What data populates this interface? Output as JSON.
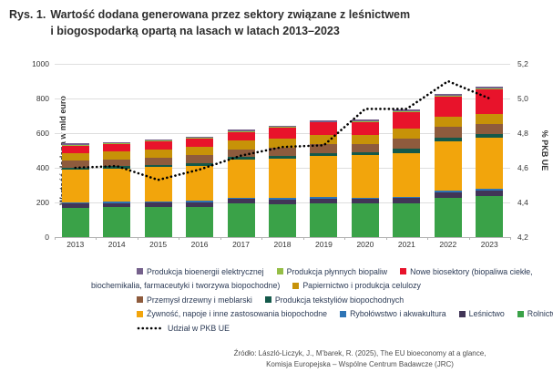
{
  "title": {
    "prefix": "Rys. 1.",
    "line1": "Wartość dodana generowana przez sektory związane z leśnictwem",
    "line2": "i biogospodarką opartą na lasach w latach 2013–2023"
  },
  "chart_data": {
    "type": "bar",
    "subtype": "stacked-bars-with-dotted-line",
    "categories": [
      2013,
      2014,
      2015,
      2016,
      2017,
      2018,
      2019,
      2020,
      2021,
      2022,
      2023
    ],
    "ylabel_left": "Wartość dodana w mld euro",
    "ylabel_right": "% PKB UE",
    "ylim_left": [
      0,
      1000
    ],
    "ylim_right": [
      4.2,
      5.2
    ],
    "y_left_ticks": [
      "0",
      "200",
      "400",
      "600",
      "800",
      "1000"
    ],
    "y_right_ticks": [
      "4,2",
      "4,4",
      "4,6",
      "4,8",
      "5,0",
      "5,2"
    ],
    "grid": true,
    "stack_order": "bottom_to_top",
    "series": [
      {
        "name": "Rolnictwo",
        "color": "#3aa248",
        "values": [
          170,
          172,
          172,
          175,
          195,
          190,
          195,
          195,
          195,
          228,
          235
        ]
      },
      {
        "name": "Leśnictwo",
        "color": "#413557",
        "values": [
          25,
          25,
          26,
          26,
          25,
          26,
          27,
          26,
          30,
          32,
          33
        ]
      },
      {
        "name": "Rybołówstwo i akwakultura",
        "color": "#2e74b5",
        "values": [
          7,
          7,
          7,
          7,
          8,
          8,
          8,
          8,
          9,
          10,
          10
        ]
      },
      {
        "name": "Żywność, napoje i inne zastosowania biopochodne",
        "color": "#f2a50c",
        "values": [
          185,
          190,
          198,
          205,
          218,
          228,
          238,
          245,
          250,
          285,
          295
        ]
      },
      {
        "name": "Produkcja tekstyliów biopochodnych",
        "color": "#14594a",
        "values": [
          15,
          15,
          15,
          15,
          15,
          16,
          17,
          16,
          25,
          20,
          20
        ]
      },
      {
        "name": "Przemysł drzewny i meblarski",
        "color": "#8e5b3d",
        "values": [
          40,
          41,
          42,
          44,
          45,
          48,
          50,
          48,
          62,
          60,
          60
        ]
      },
      {
        "name": "Papiernictwo i produkcja celulozy",
        "color": "#c79208",
        "values": [
          45,
          46,
          48,
          49,
          50,
          52,
          54,
          52,
          55,
          62,
          58
        ]
      },
      {
        "name": "Nowe biosektory (biopaliwa ciekłe, biochemikalia, farmaceutyki i tworzywa biopochodne)",
        "color": "#e8132b",
        "values": [
          42,
          43,
          46,
          48,
          52,
          64,
          72,
          76,
          95,
          112,
          140
        ]
      },
      {
        "name": "Produkcja płynnych biopaliw",
        "color": "#95be47",
        "values": [
          4,
          4,
          4,
          4,
          4,
          5,
          5,
          5,
          6,
          7,
          7
        ]
      },
      {
        "name": "Produkcja bioenergii elektrycznej",
        "color": "#75618c",
        "values": [
          7,
          7,
          7,
          7,
          8,
          8,
          9,
          9,
          10,
          9,
          10
        ]
      }
    ],
    "line_series": {
      "name": "Udział w PKB UE",
      "axis": "right",
      "style": "dotted",
      "color": "#000000",
      "values": [
        4.6,
        4.61,
        4.53,
        4.59,
        4.67,
        4.72,
        4.73,
        4.94,
        4.94,
        5.1,
        5.0
      ]
    }
  },
  "legend": {
    "rows": [
      [
        {
          "swatch": "#75618c",
          "text": "Produkcja bioenergii elektrycznej"
        },
        {
          "swatch": "#95be47",
          "text": "Produkcja płynnych biopaliw"
        },
        {
          "swatch": "#e8132b",
          "text": "Nowe biosektory (biopaliwa ciekłe,"
        }
      ],
      [
        {
          "swatch": null,
          "text": "biochemikalia, farmaceutyki i tworzywa biopochodne)"
        },
        {
          "swatch": "#c79208",
          "text": "Papiernictwo i produkcja celulozy"
        }
      ],
      [
        {
          "swatch": "#8e5b3d",
          "text": "Przemysł drzewny i meblarski"
        },
        {
          "swatch": "#14594a",
          "text": "Produkcja tekstyliów biopochodnych"
        }
      ],
      [
        {
          "swatch": "#f2a50c",
          "text": "Żywność, napoje i inne zastosowania biopochodne"
        },
        {
          "swatch": "#2e74b5",
          "text": "Rybołówstwo i akwakultura"
        },
        {
          "swatch": "#413557",
          "text": "Leśnictwo"
        },
        {
          "swatch": "#3aa248",
          "text": "Rolnictwo"
        }
      ],
      [
        {
          "dotted": true,
          "text": "Udział w PKB UE"
        }
      ]
    ]
  },
  "source": {
    "line1": "Źródło: László-Liczyk, J., M’barek, R. (2025), The EU bioeconomy at a glance,",
    "line2": "Komisja Europejska – Wspólne Centrum Badawcze (JRC)"
  }
}
